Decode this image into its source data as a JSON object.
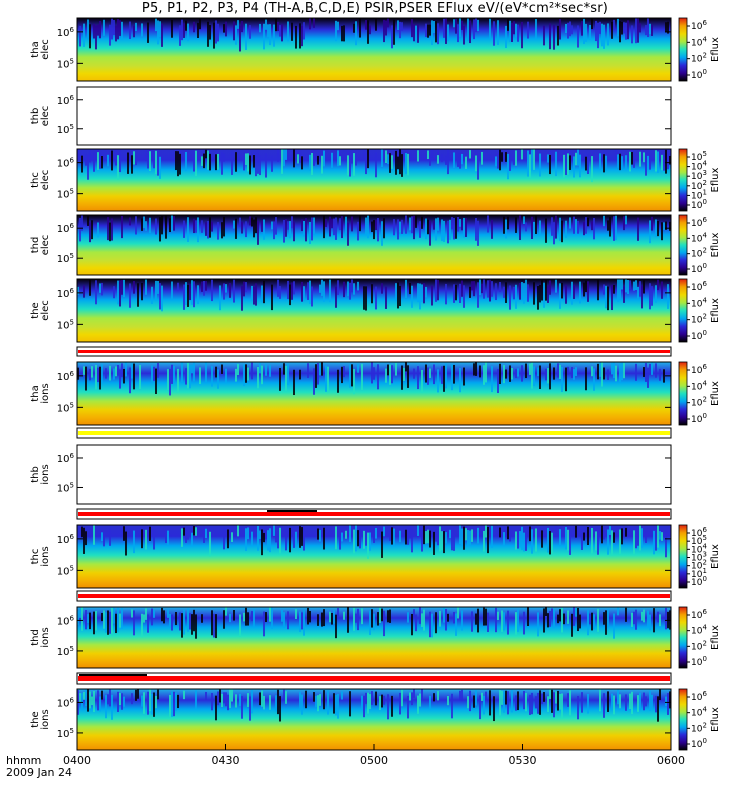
{
  "title": "P5, P1, P2, P3, P4 (TH-A,B,C,D,E) PSIR,PSER EFlux eV/(eV*cm²*sec*sr)",
  "x_axis": {
    "prefix_line1": "hhmm",
    "prefix_line2": "2009 Jan 24",
    "ticks": [
      "0400",
      "0430",
      "0500",
      "0530",
      "0600"
    ]
  },
  "chart_data": {
    "type": "heatmap",
    "title": "P5, P1, P2, P3, P4 (TH-A,B,C,D,E) PSIR,PSER EFlux eV/(eV*cm²*sec*sr)",
    "x_range": [
      "04:00",
      "06:00"
    ],
    "date": "2009 Jan 24",
    "colorbar_label": "Eflux",
    "colormap": [
      "#000000",
      "#2b0090",
      "#2a2ad8",
      "#00a8f0",
      "#20e0c0",
      "#a8e840",
      "#f0d800",
      "#f4a000",
      "#e02010"
    ],
    "panels": [
      {
        "id": "tha-elec",
        "probe": "tha",
        "species": "elec",
        "y_ticks": [
          "10^6",
          "10^5"
        ],
        "colorbar_ticks": [
          "10^6",
          "10^4",
          "10^2",
          "10^0"
        ],
        "empty": false,
        "top_band": "black",
        "bottom_band": "yellow"
      },
      {
        "id": "thb-elec",
        "probe": "thb",
        "species": "elec",
        "y_ticks": [
          "10^6",
          "10^5"
        ],
        "colorbar_ticks": [],
        "empty": true
      },
      {
        "id": "thc-elec",
        "probe": "thc",
        "species": "elec",
        "y_ticks": [
          "10^6",
          "10^5"
        ],
        "colorbar_ticks": [
          "10^5",
          "10^4",
          "10^3",
          "10^2",
          "10^1",
          "10^0"
        ],
        "empty": false,
        "top_band": "blue",
        "bottom_band": "orange"
      },
      {
        "id": "thd-elec",
        "probe": "thd",
        "species": "elec",
        "y_ticks": [
          "10^6",
          "10^5"
        ],
        "colorbar_ticks": [
          "10^6",
          "10^4",
          "10^2",
          "10^0"
        ],
        "empty": false,
        "top_band": "black",
        "bottom_band": "yellow"
      },
      {
        "id": "the-elec",
        "probe": "the",
        "species": "elec",
        "y_ticks": [
          "10^6",
          "10^5"
        ],
        "colorbar_ticks": [
          "10^6",
          "10^4",
          "10^2",
          "10^0"
        ],
        "empty": false,
        "top_band": "black",
        "bottom_band": "yellow"
      },
      {
        "id": "tha-ions",
        "probe": "tha",
        "species": "ions",
        "y_ticks": [
          "10^6",
          "10^5"
        ],
        "colorbar_ticks": [
          "10^6",
          "10^4",
          "10^2",
          "10^0"
        ],
        "empty": false,
        "top_band": "cyan",
        "bottom_band": "orange"
      },
      {
        "id": "thb-ions",
        "probe": "thb",
        "species": "ions",
        "y_ticks": [
          "10^6",
          "10^5"
        ],
        "colorbar_ticks": [],
        "empty": true
      },
      {
        "id": "thc-ions",
        "probe": "thc",
        "species": "ions",
        "y_ticks": [
          "10^6",
          "10^5"
        ],
        "colorbar_ticks": [
          "10^6",
          "10^5",
          "10^4",
          "10^3",
          "10^2",
          "10^1",
          "10^0"
        ],
        "empty": false,
        "top_band": "blue",
        "bottom_band": "orange"
      },
      {
        "id": "thd-ions",
        "probe": "thd",
        "species": "ions",
        "y_ticks": [
          "10^6",
          "10^5"
        ],
        "colorbar_ticks": [
          "10^6",
          "10^4",
          "10^2",
          "10^0"
        ],
        "empty": false,
        "top_band": "cyan",
        "bottom_band": "orange"
      },
      {
        "id": "the-ions",
        "probe": "the",
        "species": "ions",
        "y_ticks": [
          "10^6",
          "10^5"
        ],
        "colorbar_ticks": [
          "10^6",
          "10^4",
          "10^2",
          "10^0"
        ],
        "empty": false,
        "top_band": "cyan",
        "bottom_band": "orange"
      }
    ],
    "status_bars": [
      {
        "after_panel": "the-elec",
        "color": "red"
      },
      {
        "after_panel": "tha-ions",
        "color": "yellow"
      },
      {
        "after_panel": "thb-ions",
        "color": "red",
        "marker": "black"
      },
      {
        "after_panel": "thc-ions",
        "color": "red"
      },
      {
        "after_panel": "thd-ions",
        "color": "red",
        "marker": "black"
      }
    ]
  }
}
